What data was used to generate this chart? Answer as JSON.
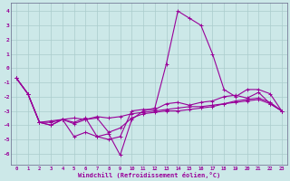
{
  "xlabel": "Windchill (Refroidissement éolien,°C)",
  "background_color": "#cce8e8",
  "grid_color": "#aacccc",
  "line_color": "#990099",
  "x": [
    0,
    1,
    2,
    3,
    4,
    5,
    6,
    7,
    8,
    9,
    10,
    11,
    12,
    13,
    14,
    15,
    16,
    17,
    18,
    19,
    20,
    21,
    22,
    23
  ],
  "y_line1": [
    -0.7,
    -1.8,
    -3.8,
    -4.0,
    -3.6,
    -3.5,
    -3.6,
    -3.4,
    -3.5,
    -3.4,
    -3.2,
    -3.1,
    -3.0,
    -2.9,
    -2.8,
    -2.7,
    -2.7,
    -2.6,
    -2.5,
    -2.4,
    -2.3,
    -2.2,
    -2.5,
    -3.0
  ],
  "y_line2": [
    -0.7,
    -1.8,
    -3.8,
    -4.0,
    -3.6,
    -4.8,
    -4.5,
    -4.8,
    -4.6,
    -6.1,
    -3.6,
    -3.0,
    -2.8,
    0.3,
    4.0,
    3.5,
    3.0,
    1.0,
    -1.5,
    -2.0,
    -1.5,
    -1.5,
    -1.8,
    -3.0
  ],
  "y_line3": [
    -0.7,
    -1.8,
    -3.8,
    -3.7,
    -3.6,
    -3.8,
    -3.5,
    -4.8,
    -5.0,
    -4.8,
    -3.0,
    -2.9,
    -2.9,
    -2.5,
    -2.4,
    -2.6,
    -2.4,
    -2.3,
    -2.0,
    -1.9,
    -2.1,
    -1.7,
    -2.5,
    -3.0
  ],
  "y_line4": [
    -0.7,
    -1.8,
    -3.8,
    -3.8,
    -3.6,
    -3.9,
    -3.6,
    -3.5,
    -4.5,
    -4.2,
    -3.5,
    -3.2,
    -3.1,
    -3.0,
    -3.0,
    -2.9,
    -2.8,
    -2.7,
    -2.5,
    -2.3,
    -2.2,
    -2.1,
    -2.4,
    -3.0
  ],
  "ylim": [
    -6.8,
    4.6
  ],
  "xlim": [
    -0.5,
    23.5
  ],
  "yticks": [
    -6,
    -5,
    -4,
    -3,
    -2,
    -1,
    0,
    1,
    2,
    3,
    4
  ],
  "xticks": [
    0,
    1,
    2,
    3,
    4,
    5,
    6,
    7,
    8,
    9,
    10,
    11,
    12,
    13,
    14,
    15,
    16,
    17,
    18,
    19,
    20,
    21,
    22,
    23
  ]
}
